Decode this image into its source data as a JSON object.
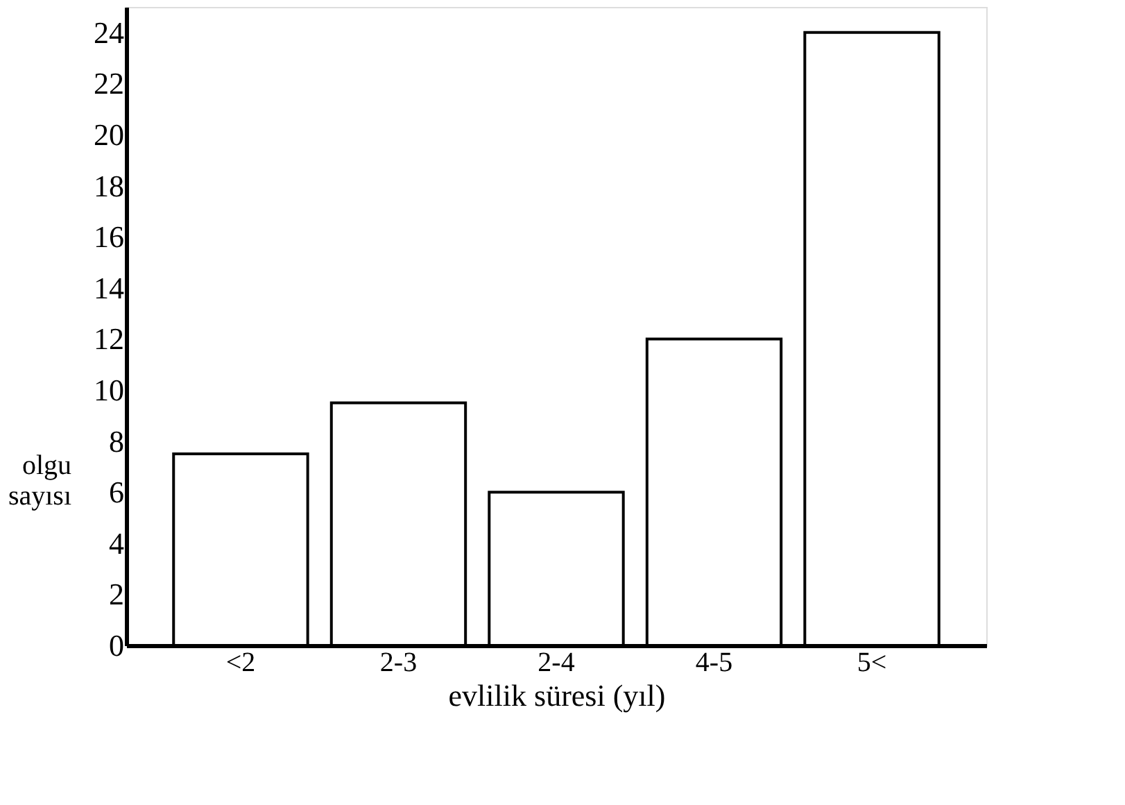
{
  "chart_data": {
    "type": "bar",
    "categories": [
      "<2",
      "2-3",
      "2-4",
      "4-5",
      "5<"
    ],
    "values": [
      7.5,
      9.5,
      6,
      12,
      24
    ],
    "color": "#ffffff",
    "xlabel": "evlilik süresi (yıl)",
    "ylabel": "olgu sayısı",
    "ylim": [
      0,
      25
    ],
    "yticks": [
      0,
      2,
      4,
      6,
      8,
      10,
      12,
      14,
      16,
      18,
      20,
      22,
      24
    ],
    "grid": false
  }
}
